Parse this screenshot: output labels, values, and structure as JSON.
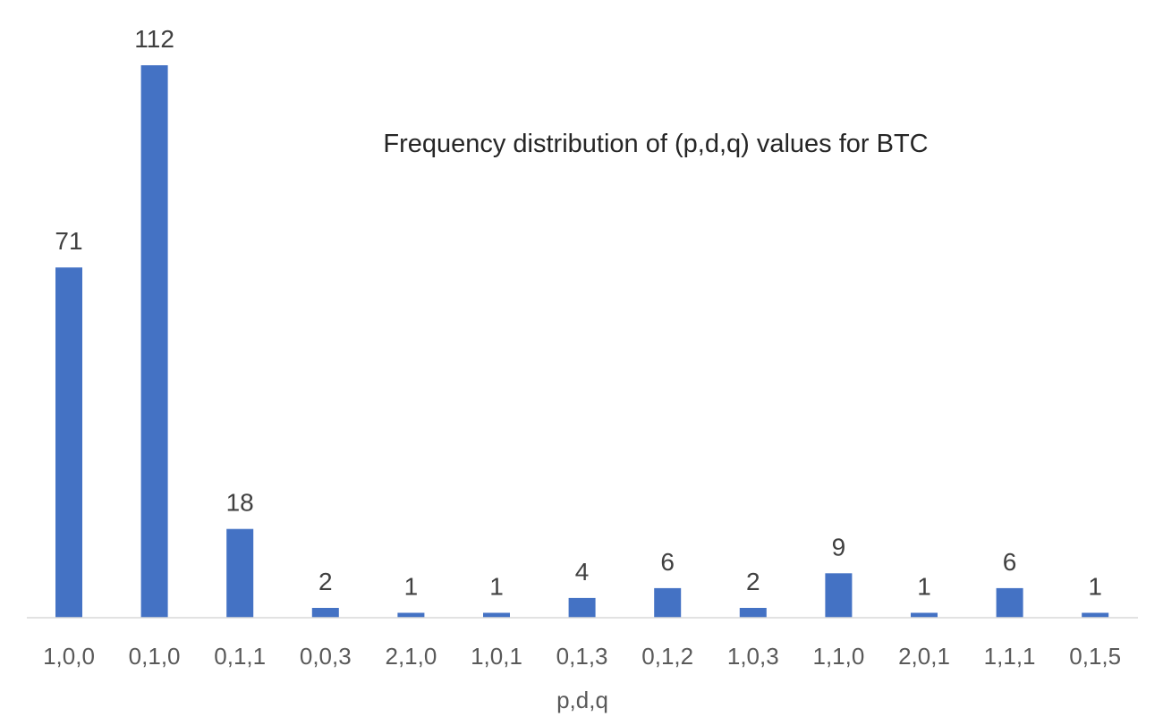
{
  "chart_data": {
    "type": "bar",
    "title": "Frequency distribution of (p,d,q) values for BTC",
    "xlabel": "p,d,q",
    "ylabel": "",
    "categories": [
      "1,0,0",
      "0,1,0",
      "0,1,1",
      "0,0,3",
      "2,1,0",
      "1,0,1",
      "0,1,3",
      "0,1,2",
      "1,0,3",
      "1,1,0",
      "2,0,1",
      "1,1,1",
      "0,1,5"
    ],
    "values": [
      71,
      112,
      18,
      2,
      1,
      1,
      4,
      6,
      2,
      9,
      1,
      6,
      1
    ],
    "ylim": [
      0,
      112
    ],
    "grid": false,
    "data_labels": true,
    "bar_color": "#4472C4",
    "axis_color": "#D9D9D9"
  }
}
